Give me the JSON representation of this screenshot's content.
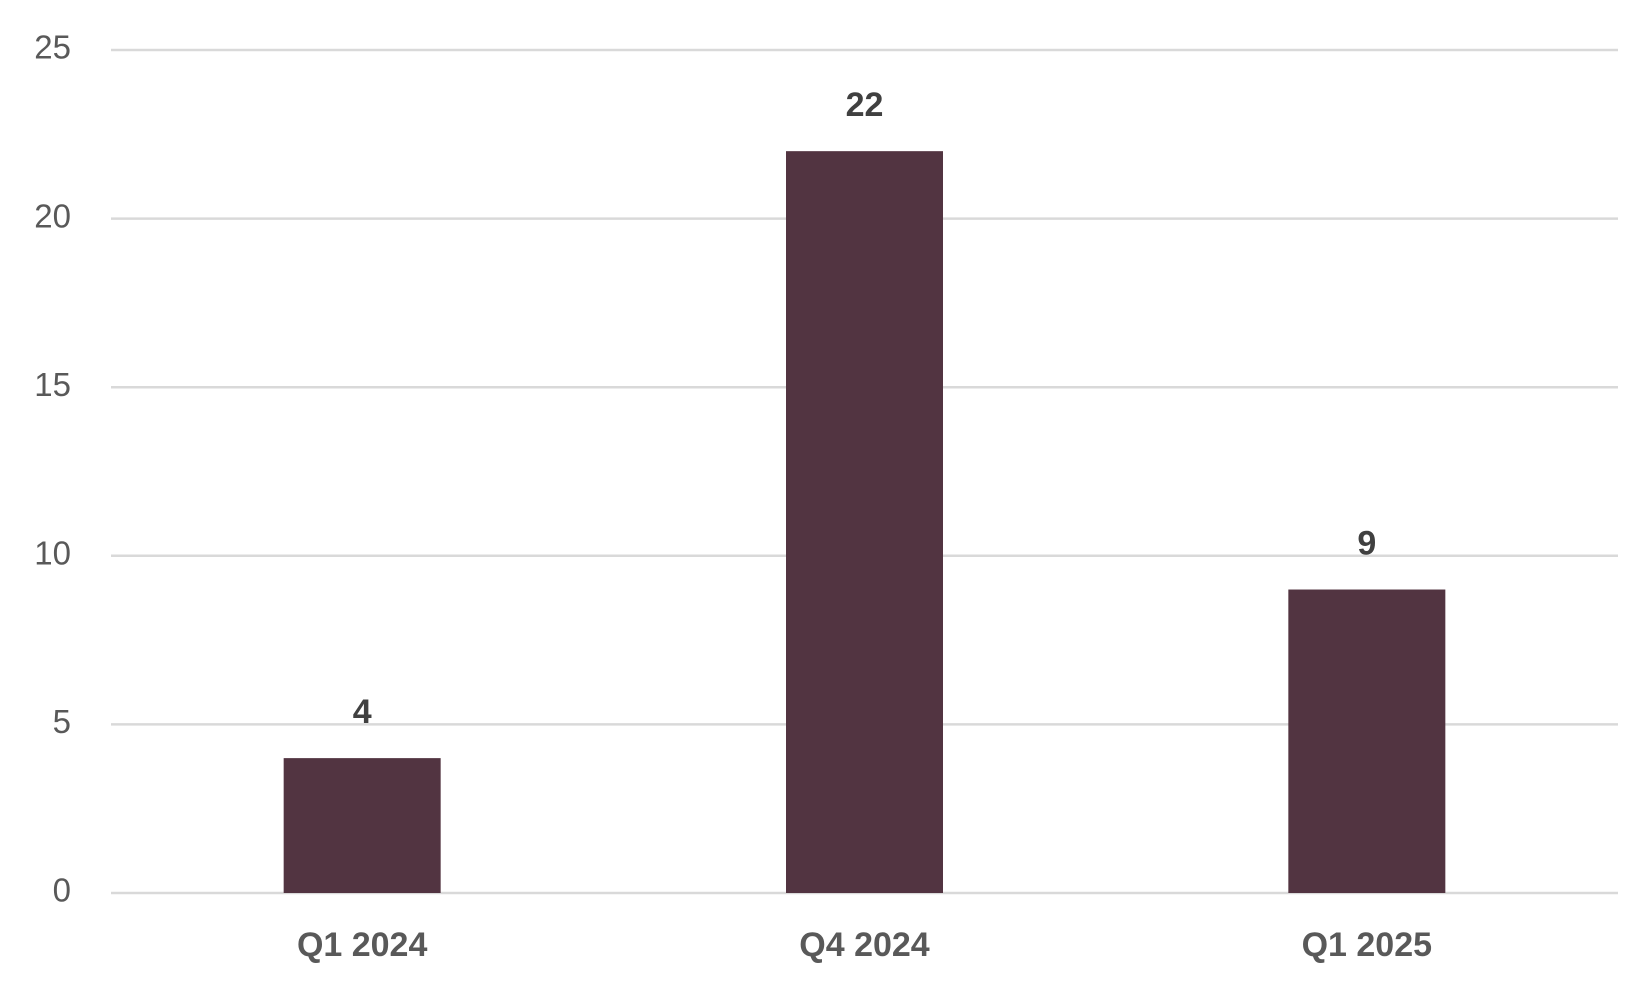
{
  "chart_data": {
    "type": "bar",
    "categories": [
      "Q1 2024",
      "Q4 2024",
      "Q1 2025"
    ],
    "values": [
      4,
      22,
      9
    ],
    "color": "#523441",
    "ylim": [
      0,
      25
    ],
    "yticks": [
      0,
      5,
      10,
      15,
      20,
      25
    ],
    "grid": true
  }
}
